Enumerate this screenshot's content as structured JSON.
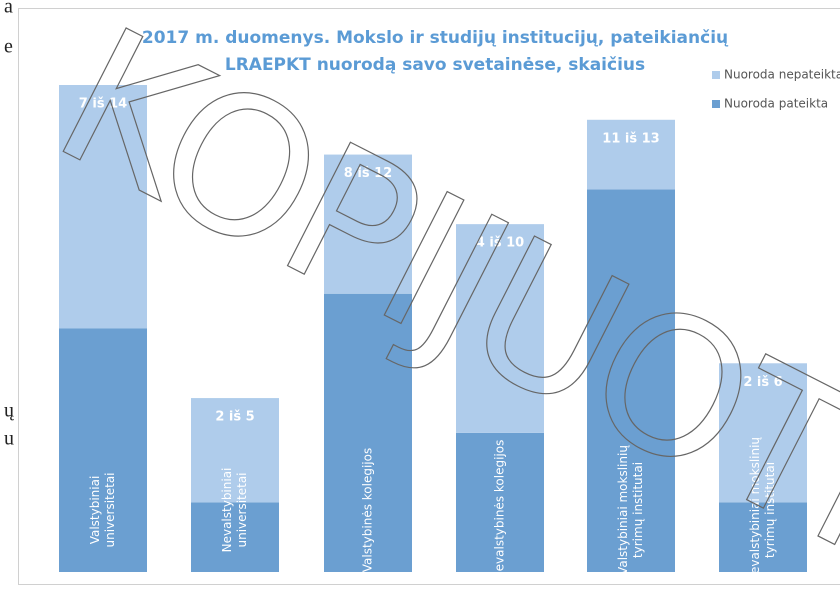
{
  "chart_data": {
    "type": "stacked_bar",
    "title": [
      "2017 m. duomenys. Mokslo ir studijų institucijų, pateikiančių",
      "LRAEPKT nuorodą savo svetainėse, skaičius"
    ],
    "categories": [
      [
        "Valstybiniai",
        "universitetai"
      ],
      [
        "Nevalstybiniai",
        "universitetai"
      ],
      [
        "Valstybinės kolegijos"
      ],
      [
        "Nevalstybinės kolegijos"
      ],
      [
        "Valstybiniai mokslinių",
        "tyrimų institutai"
      ],
      [
        "Nevalstybiniai mokslinių",
        "tyrimų institutai"
      ]
    ],
    "series": [
      {
        "name": "Nuoroda pateikta",
        "color": "#6b9fd1",
        "values": [
          7,
          2,
          8,
          4,
          11,
          2
        ]
      },
      {
        "name": "Nuoroda nepateikta",
        "color": "#afcceb",
        "values": [
          7,
          3,
          4,
          6,
          2,
          4
        ]
      }
    ],
    "bar_labels": [
      "7 iš 14",
      "2 iš 5",
      "8 iš 12",
      "4 iš 10",
      "11 iš 13",
      "2 iš 6"
    ],
    "ylim": [
      0,
      14
    ],
    "legend": "top-right",
    "watermark": "KOPIJUOTI",
    "side_text": [
      "a",
      "e",
      "ų",
      "u"
    ]
  }
}
